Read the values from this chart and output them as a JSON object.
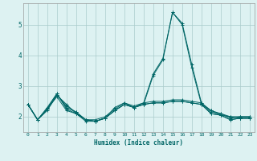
{
  "xlabel": "Humidex (Indice chaleur)",
  "background_color": "#ddf2f2",
  "grid_color": "#aacccc",
  "line_color": "#006666",
  "xlim": [
    -0.5,
    23.5
  ],
  "ylim": [
    1.5,
    5.7
  ],
  "yticks": [
    2,
    3,
    4,
    5
  ],
  "xticks": [
    0,
    1,
    2,
    3,
    4,
    5,
    6,
    7,
    8,
    9,
    10,
    11,
    12,
    13,
    14,
    15,
    16,
    17,
    18,
    19,
    20,
    21,
    22,
    23
  ],
  "series": [
    [
      2.4,
      1.9,
      2.2,
      2.7,
      2.4,
      2.1,
      1.85,
      1.85,
      1.95,
      2.3,
      2.45,
      2.3,
      2.45,
      3.4,
      3.9,
      5.4,
      5.05,
      3.7,
      2.45,
      2.15,
      2.1,
      1.95,
      2.0,
      2.0
    ],
    [
      2.4,
      1.9,
      2.25,
      2.7,
      2.35,
      2.15,
      1.9,
      1.85,
      1.95,
      2.2,
      2.4,
      2.3,
      2.4,
      3.35,
      3.85,
      5.4,
      5.0,
      3.6,
      2.4,
      2.1,
      2.05,
      1.9,
      1.95,
      1.95
    ],
    [
      2.4,
      1.9,
      2.25,
      2.65,
      2.2,
      2.1,
      1.9,
      1.85,
      1.95,
      2.2,
      2.4,
      2.3,
      2.4,
      2.45,
      2.45,
      2.5,
      2.5,
      2.45,
      2.4,
      2.2,
      2.05,
      2.0,
      1.95,
      1.95
    ],
    [
      2.4,
      1.9,
      2.25,
      2.75,
      2.25,
      2.1,
      1.9,
      1.85,
      1.95,
      2.2,
      2.4,
      2.3,
      2.4,
      2.45,
      2.45,
      2.5,
      2.5,
      2.45,
      2.4,
      2.1,
      2.05,
      1.9,
      1.95,
      1.95
    ],
    [
      2.4,
      1.9,
      2.3,
      2.75,
      2.3,
      2.15,
      1.9,
      1.9,
      2.0,
      2.25,
      2.45,
      2.35,
      2.45,
      2.5,
      2.5,
      2.55,
      2.55,
      2.5,
      2.45,
      2.2,
      2.1,
      2.0,
      2.0,
      2.0
    ]
  ]
}
